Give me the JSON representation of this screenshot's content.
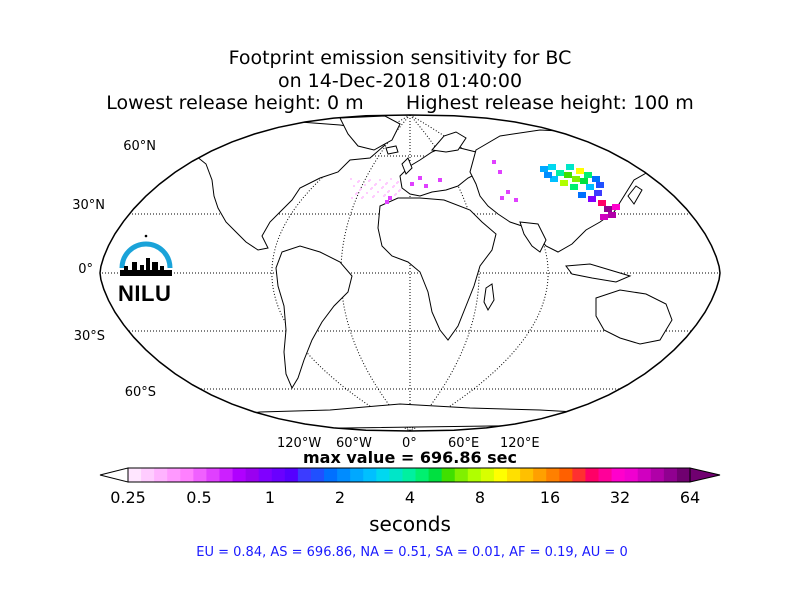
{
  "title": {
    "line1": "Footprint emission sensitivity for BC",
    "line2": "on 14-Dec-2018 01:40:00",
    "line3": "Lowest release height: 0 m       Highest release height: 100 m"
  },
  "map": {
    "projection": "Robinson",
    "lat_labels": [
      "60°N",
      "30°N",
      "0°",
      "30°S",
      "60°S"
    ],
    "lon_labels": [
      "120°W",
      "60°W",
      "0°",
      "60°E",
      "120°E"
    ],
    "ocean_color": "#ffffff",
    "coastline_color": "#000000"
  },
  "logo": {
    "text": "NILU",
    "arc_color": "#1aa3d9"
  },
  "max_value": "max value = 696.86 sec",
  "colorbar": {
    "ticks": [
      "0.25",
      "0.5",
      "1",
      "2",
      "4",
      "8",
      "16",
      "32",
      "64"
    ],
    "label": "seconds",
    "colors": [
      "#ffe6ff",
      "#ffccff",
      "#ffb3ff",
      "#ff99ff",
      "#ff80ff",
      "#f060ff",
      "#e040ff",
      "#cc20ff",
      "#b000ff",
      "#9a00f0",
      "#8000ff",
      "#6a00ff",
      "#5500ff",
      "#3c3cff",
      "#2050ff",
      "#0070ff",
      "#008cff",
      "#00a8ff",
      "#00c0ff",
      "#00d8f0",
      "#00e6c8",
      "#00f0a0",
      "#00f070",
      "#00e040",
      "#40e000",
      "#80f000",
      "#b0ff00",
      "#d8ff00",
      "#ffff00",
      "#ffe000",
      "#ffc000",
      "#ffa000",
      "#ff8000",
      "#ff6000",
      "#ff3030",
      "#ff0066",
      "#ff0099",
      "#ff00cc",
      "#f000d0",
      "#d000c0",
      "#b000a8",
      "#900090",
      "#700070"
    ]
  },
  "summary": "EU = 0.84,  AS = 696.86,  NA = 0.51,  SA = 0.01,  AF = 0.19,  AU = 0"
}
